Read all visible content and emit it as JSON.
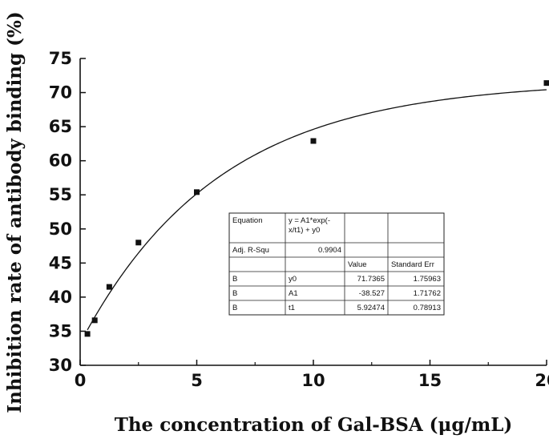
{
  "chart_data": {
    "type": "scatter",
    "title": "",
    "xlabel": "The  concentration of Gal-BSA (μg/mL)",
    "ylabel": "Inhibition rate of antibody  binding (%)",
    "xlim": [
      0,
      20
    ],
    "ylim": [
      30,
      75
    ],
    "xticks": [
      0,
      5,
      10,
      15,
      20
    ],
    "yticks": [
      30,
      35,
      40,
      45,
      50,
      55,
      60,
      65,
      70,
      75
    ],
    "grid": false,
    "points": {
      "x": [
        0.3125,
        0.625,
        1.25,
        2.5,
        5,
        10,
        20
      ],
      "y": [
        34.6,
        36.6,
        41.5,
        48.0,
        55.4,
        62.9,
        71.4
      ]
    },
    "fit": {
      "type": "line",
      "model": "exponential",
      "y0": 71.7365,
      "A1": -38.527,
      "t1": 5.92474
    },
    "fit_table": {
      "rows": [
        [
          "Equation",
          "y = A1*exp(-x/t1) + y0",
          "",
          ""
        ],
        [
          "Adj. R-Squ",
          "0.9904",
          "",
          ""
        ],
        [
          "",
          "",
          "Value",
          "Standard Err"
        ],
        [
          "B",
          "y0",
          "71.7365",
          "1.75963"
        ],
        [
          "B",
          "A1",
          "-38.527",
          "1.71762"
        ],
        [
          "B",
          "t1",
          "5.92474",
          "0.78913"
        ]
      ]
    }
  }
}
